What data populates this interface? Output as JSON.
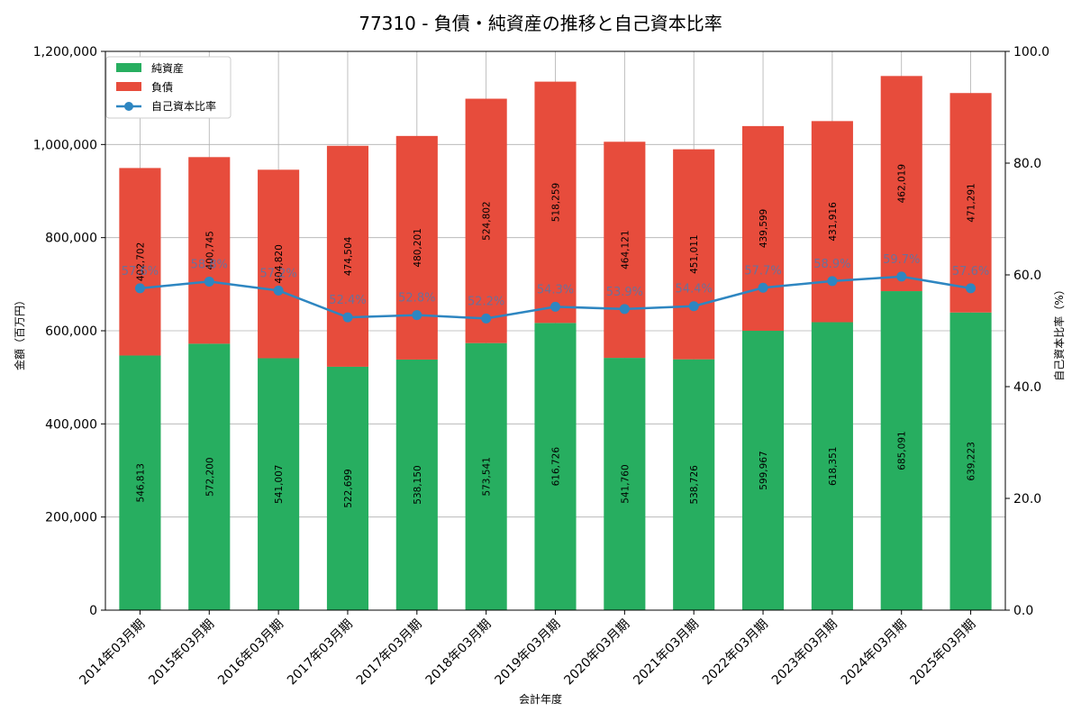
{
  "chart_data": {
    "type": "bar",
    "stacked": true,
    "title": "77310 - 負債・純資産の推移と自己資本比率",
    "xlabel": "会計年度",
    "ylabel": "金額（百万円）",
    "y2label": "自己資本比率（%）",
    "ylim": [
      0,
      1200000
    ],
    "y2lim": [
      0,
      100
    ],
    "grid": true,
    "legend_position": "top-left",
    "categories": [
      "2014年03月期",
      "2015年03月期",
      "2016年03月期",
      "2017年03月期",
      "2017年03月期",
      "2018年03月期",
      "2019年03月期",
      "2020年03月期",
      "2021年03月期",
      "2022年03月期",
      "2023年03月期",
      "2024年03月期",
      "2025年03月期"
    ],
    "y_ticks": [
      "0",
      "200,000",
      "400,000",
      "600,000",
      "800,000",
      "1,000,000",
      "1,200,000"
    ],
    "y2_ticks": [
      "0.0",
      "20.0",
      "40.0",
      "60.0",
      "80.0",
      "100.0"
    ],
    "series": [
      {
        "name": "純資産",
        "color": "#27ae60",
        "values": [
          546813,
          572200,
          541007,
          522699,
          538150,
          573541,
          616726,
          541760,
          538726,
          599967,
          618351,
          685091,
          639223
        ],
        "labels": [
          "546,813",
          "572,200",
          "541,007",
          "522,699",
          "538,150",
          "573,541",
          "616,726",
          "541,760",
          "538,726",
          "599,967",
          "618,351",
          "685,091",
          "639,223"
        ]
      },
      {
        "name": "負債",
        "color": "#e74c3c",
        "values": [
          402702,
          400745,
          404820,
          474504,
          480201,
          524802,
          518259,
          464121,
          451011,
          439599,
          431916,
          462019,
          471291
        ],
        "labels": [
          "402,702",
          "400,745",
          "404,820",
          "474,504",
          "480,201",
          "524,802",
          "518,259",
          "464,121",
          "451,011",
          "439,599",
          "431,916",
          "462,019",
          "471,291"
        ]
      }
    ],
    "line_series": {
      "name": "自己資本比率",
      "color": "#2e86c1",
      "values": [
        57.6,
        58.8,
        57.2,
        52.4,
        52.8,
        52.2,
        54.3,
        53.9,
        54.4,
        57.7,
        58.9,
        59.7,
        57.6
      ],
      "labels": [
        "57.6%",
        "58.8%",
        "57.2%",
        "52.4%",
        "52.8%",
        "52.2%",
        "54.3%",
        "53.9%",
        "54.4%",
        "57.7%",
        "58.9%",
        "59.7%",
        "57.6%"
      ]
    }
  }
}
